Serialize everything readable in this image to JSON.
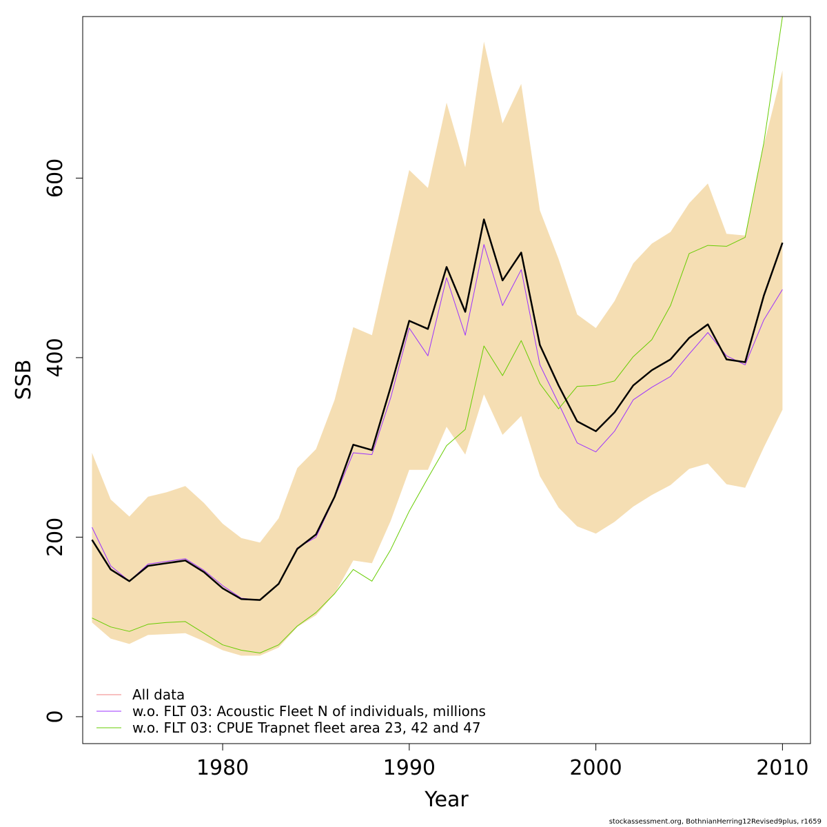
{
  "chart_data": {
    "type": "line",
    "xlabel": "Year",
    "ylabel": "SSB",
    "xlim": [
      1972.5,
      2011.5
    ],
    "ylim": [
      -30,
      780
    ],
    "x_ticks": [
      1980,
      1990,
      2000,
      2010
    ],
    "y_ticks": [
      0,
      200,
      400,
      600
    ],
    "grid": false,
    "legend_position": "bottom-left",
    "x": [
      1973,
      1974,
      1975,
      1976,
      1977,
      1978,
      1979,
      1980,
      1981,
      1982,
      1983,
      1984,
      1985,
      1986,
      1987,
      1988,
      1989,
      1990,
      1991,
      1992,
      1993,
      1994,
      1995,
      1996,
      1997,
      1998,
      1999,
      2000,
      2001,
      2002,
      2003,
      2004,
      2005,
      2006,
      2007,
      2008,
      2009,
      2010
    ],
    "band": {
      "color": "#f5deb3",
      "upper": [
        294,
        242,
        223,
        245,
        250,
        257,
        238,
        215,
        199,
        194,
        221,
        277,
        298,
        353,
        434,
        425,
        518,
        609,
        589,
        684,
        612,
        752,
        661,
        705,
        564,
        510,
        448,
        433,
        463,
        505,
        527,
        540,
        572,
        594,
        538,
        536,
        637,
        720
      ],
      "lower": [
        105,
        87,
        81,
        91,
        92,
        93,
        84,
        74,
        68,
        68,
        77,
        100,
        113,
        137,
        174,
        171,
        218,
        275,
        275,
        323,
        292,
        359,
        314,
        335,
        268,
        233,
        212,
        204,
        217,
        234,
        247,
        258,
        276,
        282,
        259,
        255,
        300,
        342
      ]
    },
    "series": [
      {
        "name": "All data",
        "color": "#000000",
        "legend_color": "#f08080",
        "width": 2.5,
        "values": [
          197,
          164,
          151,
          168,
          171,
          174,
          161,
          143,
          131,
          130,
          148,
          187,
          203,
          245,
          303,
          297,
          367,
          441,
          432,
          501,
          451,
          554,
          486,
          517,
          414,
          369,
          329,
          318,
          339,
          369,
          386,
          398,
          422,
          437,
          398,
          395,
          469,
          528
        ]
      },
      {
        "name": "w.o. FLT 03: Acoustic Fleet  N of individuals, millions",
        "color": "#9b30ff",
        "legend_color": "#9b30ff",
        "width": 1,
        "values": [
          211,
          168,
          151,
          170,
          173,
          176,
          163,
          146,
          132,
          130,
          148,
          188,
          200,
          244,
          294,
          292,
          355,
          433,
          402,
          489,
          425,
          526,
          458,
          498,
          392,
          349,
          305,
          295,
          318,
          353,
          367,
          379,
          404,
          428,
          402,
          392,
          442,
          476
        ]
      },
      {
        "name": "w.o. FLT 03: CPUE Trapnet fleet area 23, 42 and 47",
        "color": "#66cc00",
        "legend_color": "#66cc00",
        "width": 1,
        "values": [
          110,
          100,
          95,
          103,
          105,
          106,
          93,
          80,
          74,
          71,
          80,
          101,
          116,
          137,
          164,
          151,
          186,
          229,
          266,
          302,
          320,
          413,
          380,
          419,
          371,
          343,
          368,
          369,
          374,
          401,
          420,
          458,
          516,
          525,
          524,
          534,
          639,
          780
        ]
      }
    ]
  },
  "footer": "stockassessment.org, BothnianHerring12Revised9plus, r1659"
}
